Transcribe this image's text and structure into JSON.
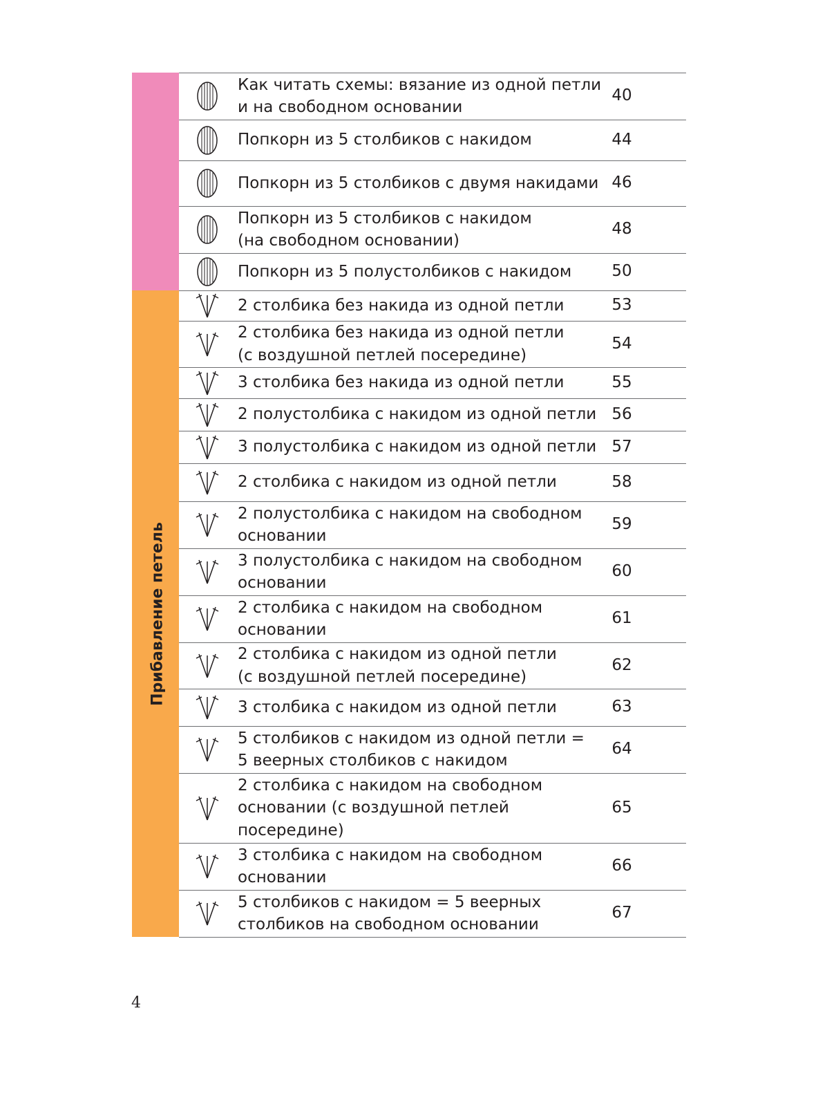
{
  "sections": [
    {
      "rows": [
        {
          "lines": [
            "Как читать схемы: вязание из одной петли",
            "и на свободном основании"
          ],
          "page": 40
        },
        {
          "lines": [
            "Попкорн из 5 столбиков с накидом"
          ],
          "page": 44
        },
        {
          "lines": [
            "Попкорн из 5 столбиков с двумя накидами"
          ],
          "page": 46
        },
        {
          "lines": [
            "Попкорн из 5 столбиков с накидом",
            "(на свободном основании)"
          ],
          "page": 48
        },
        {
          "lines": [
            "Попкорн из 5 полустолбиков с накидом"
          ],
          "page": 50
        }
      ]
    },
    {
      "label": "Прибавление петель",
      "rows": [
        {
          "lines": [
            "2 столбика без накида из одной петли"
          ],
          "page": 53
        },
        {
          "lines": [
            "2 столбика без накида из одной петли",
            "(с воздушной петлей посередине)"
          ],
          "page": 54
        },
        {
          "lines": [
            "3 столбика без накида из одной петли"
          ],
          "page": 55
        },
        {
          "lines": [
            "2 полустолбика с накидом из одной петли"
          ],
          "page": 56
        },
        {
          "lines": [
            "3 полустолбика с накидом из одной петли"
          ],
          "page": 57
        },
        {
          "lines": [
            "2 столбика с накидом из одной петли"
          ],
          "page": 58
        },
        {
          "lines": [
            "2 полустолбика с накидом на свободном",
            "основании"
          ],
          "page": 59
        },
        {
          "lines": [
            "3 полустолбика с накидом на свободном",
            "основании"
          ],
          "page": 60
        },
        {
          "lines": [
            "2 столбика с накидом на свободном",
            "основании"
          ],
          "page": 61
        },
        {
          "lines": [
            "2 столбика с накидом из одной петли",
            "(с воздушной петлей посередине)"
          ],
          "page": 62
        },
        {
          "lines": [
            "3 столбика с накидом из одной петли"
          ],
          "page": 63
        },
        {
          "lines": [
            "5 столбиков с накидом из одной петли =",
            "5 веерных столбиков с накидом"
          ],
          "page": 64
        },
        {
          "lines": [
            "2 столбика с накидом на свободном",
            "основании (с воздушной петлей",
            "посередине)"
          ],
          "page": 65
        },
        {
          "lines": [
            "3 столбика с накидом на свободном",
            "основании"
          ],
          "page": 66
        },
        {
          "lines": [
            "5 столбиков с накидом = 5 веерных",
            "столбиков на свободном основании"
          ],
          "page": 67
        }
      ]
    }
  ],
  "page_number": "4"
}
